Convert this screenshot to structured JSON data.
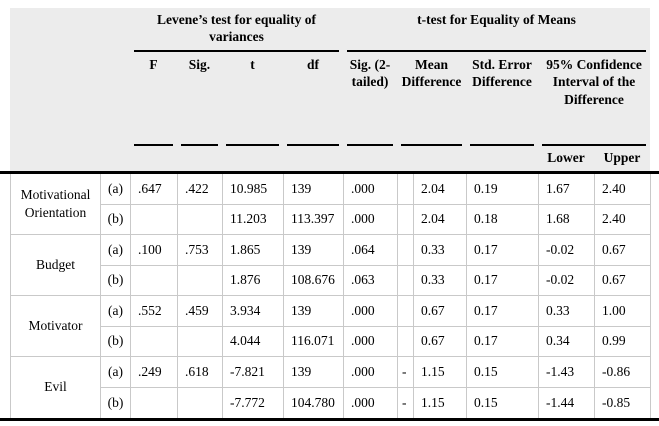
{
  "table": {
    "group_headers": {
      "levene": "Levene’s test for equality of variances",
      "ttest": "t-test for Equality of Means"
    },
    "col_headers": {
      "f": "F",
      "sig": "Sig.",
      "t": "t",
      "df": "df",
      "sig2": "Sig. (2-tailed)",
      "mean": "Mean Difference",
      "se": "Std. Error Difference",
      "ci": "95% Confidence Interval of the Difference",
      "lower": "Lower",
      "upper": "Upper"
    },
    "groups": [
      {
        "label": "Motivational Orientation",
        "rows": [
          {
            "variant": "(a)",
            "f": ".647",
            "sig": ".422",
            "t": "10.985",
            "df": "139",
            "sig2": ".000",
            "neg": "",
            "mean": "2.04",
            "se": "0.19",
            "lower": "1.67",
            "upper": "2.40"
          },
          {
            "variant": "(b)",
            "f": "",
            "sig": "",
            "t": "11.203",
            "df": "113.397",
            "sig2": ".000",
            "neg": "",
            "mean": "2.04",
            "se": "0.18",
            "lower": "1.68",
            "upper": "2.40"
          }
        ]
      },
      {
        "label": "Budget",
        "rows": [
          {
            "variant": "(a)",
            "f": ".100",
            "sig": ".753",
            "t": "1.865",
            "df": "139",
            "sig2": ".064",
            "neg": "",
            "mean": "0.33",
            "se": "0.17",
            "lower": "-0.02",
            "upper": "0.67"
          },
          {
            "variant": "(b)",
            "f": "",
            "sig": "",
            "t": "1.876",
            "df": "108.676",
            "sig2": ".063",
            "neg": "",
            "mean": "0.33",
            "se": "0.17",
            "lower": "-0.02",
            "upper": "0.67"
          }
        ]
      },
      {
        "label": "Motivator",
        "rows": [
          {
            "variant": "(a)",
            "f": ".552",
            "sig": ".459",
            "t": "3.934",
            "df": "139",
            "sig2": ".000",
            "neg": "",
            "mean": "0.67",
            "se": "0.17",
            "lower": "0.33",
            "upper": "1.00"
          },
          {
            "variant": "(b)",
            "f": "",
            "sig": "",
            "t": "4.044",
            "df": "116.071",
            "sig2": ".000",
            "neg": "",
            "mean": "0.67",
            "se": "0.17",
            "lower": "0.34",
            "upper": "0.99"
          }
        ]
      },
      {
        "label": "Evil",
        "rows": [
          {
            "variant": "(a)",
            "f": ".249",
            "sig": ".618",
            "t": "-7.821",
            "df": "139",
            "sig2": ".000",
            "neg": "-",
            "mean": "1.15",
            "se": "0.15",
            "lower": "-1.43",
            "upper": "-0.86"
          },
          {
            "variant": "(b)",
            "f": "",
            "sig": "",
            "t": "-7.772",
            "df": "104.780",
            "sig2": ".000",
            "neg": "-",
            "mean": "1.15",
            "se": "0.15",
            "lower": "-1.44",
            "upper": "-0.85"
          }
        ]
      }
    ],
    "colors": {
      "header_bg": "#ececec",
      "grid_line": "#c9c9c9",
      "rule": "#000000"
    }
  }
}
